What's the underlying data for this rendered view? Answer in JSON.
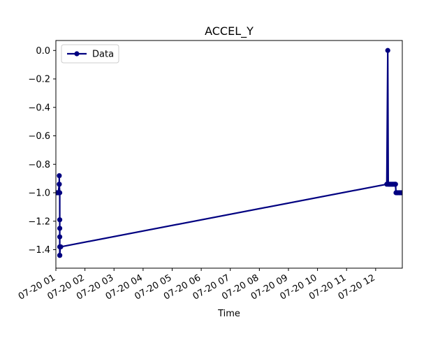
{
  "chart_data": {
    "type": "line",
    "title": "ACCEL_Y",
    "xlabel": "Time",
    "ylabel": "",
    "x_axis_type": "datetime",
    "xlim": [
      "2024-07-20T01:00",
      "2024-07-20T12:55"
    ],
    "ylim": [
      -1.53,
      0.07
    ],
    "x_ticks": [
      "2024-07-20T01:00",
      "2024-07-20T02:00",
      "2024-07-20T03:00",
      "2024-07-20T04:00",
      "2024-07-20T05:00",
      "2024-07-20T06:00",
      "2024-07-20T07:00",
      "2024-07-20T08:00",
      "2024-07-20T09:00",
      "2024-07-20T10:00",
      "2024-07-20T11:00",
      "2024-07-20T12:00"
    ],
    "x_tick_labels": [
      "07-20 01",
      "07-20 02",
      "07-20 03",
      "07-20 04",
      "07-20 05",
      "07-20 06",
      "07-20 07",
      "07-20 08",
      "07-20 09",
      "07-20 10",
      "07-20 11",
      "07-20 12"
    ],
    "y_ticks": [
      0.0,
      -0.2,
      -0.4,
      -0.6,
      -0.8,
      -1.0,
      -1.2,
      -1.4
    ],
    "y_tick_labels": [
      "0.0",
      "−0.2",
      "−0.4",
      "−0.6",
      "−0.8",
      "−1.0",
      "−1.2",
      "−1.4"
    ],
    "grid": false,
    "legend_position": "upper left",
    "series": [
      {
        "name": "Data",
        "color": "#000080",
        "marker": "circle",
        "points": [
          [
            "2024-07-20T01:00",
            -1.0
          ],
          [
            "2024-07-20T01:03",
            -1.0
          ],
          [
            "2024-07-20T01:05",
            -1.0
          ],
          [
            "2024-07-20T01:07",
            -0.94
          ],
          [
            "2024-07-20T01:07",
            -0.88
          ],
          [
            "2024-07-20T01:07",
            -0.94
          ],
          [
            "2024-07-20T01:08",
            -1.0
          ],
          [
            "2024-07-20T01:08",
            -1.19
          ],
          [
            "2024-07-20T01:08",
            -1.25
          ],
          [
            "2024-07-20T01:08",
            -1.31
          ],
          [
            "2024-07-20T01:08",
            -1.38
          ],
          [
            "2024-07-20T01:08",
            -1.44
          ],
          [
            "2024-07-20T01:08",
            -1.44
          ],
          [
            "2024-07-20T01:09",
            -1.38
          ],
          [
            "2024-07-20T01:10",
            -1.38
          ],
          [
            "2024-07-20T12:23",
            -0.94
          ],
          [
            "2024-07-20T12:25",
            -0.0
          ],
          [
            "2024-07-20T12:26",
            -0.94
          ],
          [
            "2024-07-20T12:28",
            -0.94
          ],
          [
            "2024-07-20T12:30",
            -0.94
          ],
          [
            "2024-07-20T12:32",
            -0.94
          ],
          [
            "2024-07-20T12:34",
            -0.94
          ],
          [
            "2024-07-20T12:36",
            -0.94
          ],
          [
            "2024-07-20T12:38",
            -0.94
          ],
          [
            "2024-07-20T12:40",
            -0.94
          ],
          [
            "2024-07-20T12:41",
            -0.94
          ],
          [
            "2024-07-20T12:42",
            -1.0
          ],
          [
            "2024-07-20T12:44",
            -1.0
          ],
          [
            "2024-07-20T12:46",
            -1.0
          ],
          [
            "2024-07-20T12:48",
            -1.0
          ],
          [
            "2024-07-20T12:50",
            -1.0
          ],
          [
            "2024-07-20T12:52",
            -1.0
          ],
          [
            "2024-07-20T12:55",
            -1.0
          ]
        ]
      }
    ]
  }
}
